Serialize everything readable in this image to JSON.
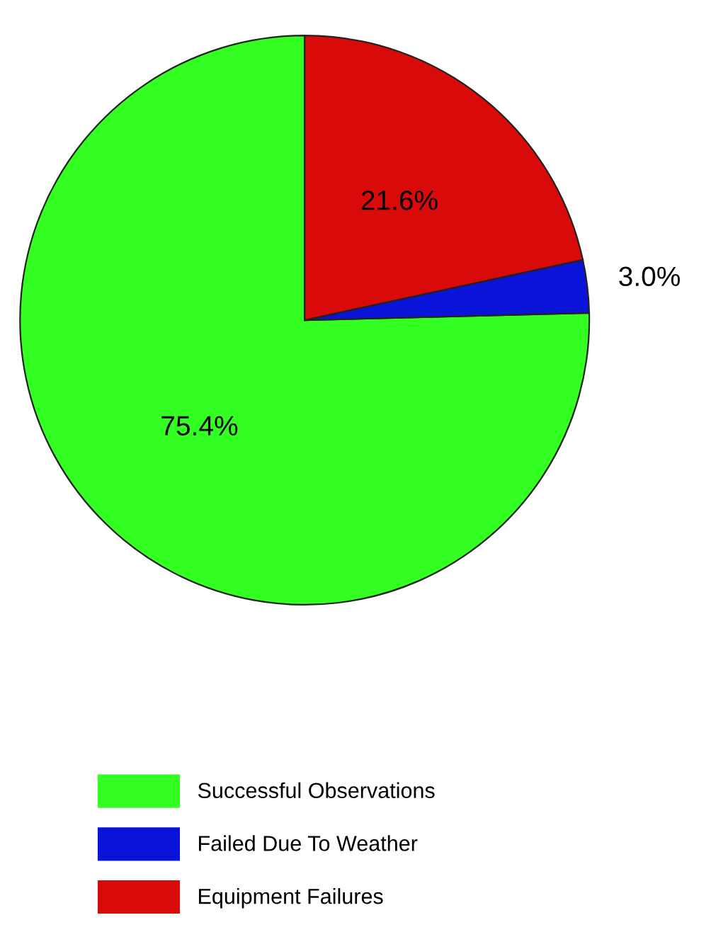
{
  "chart_data": {
    "type": "pie",
    "categories": [
      "Successful Observations",
      "Failed Due To Weather",
      "Equipment Failures"
    ],
    "values": [
      75.4,
      3.0,
      21.6
    ],
    "colors": [
      "#33ff22",
      "#0a14d8",
      "#d80a0a"
    ],
    "value_labels": [
      "75.4%",
      "3.0%",
      "21.6%"
    ],
    "legend": "bottom left"
  }
}
